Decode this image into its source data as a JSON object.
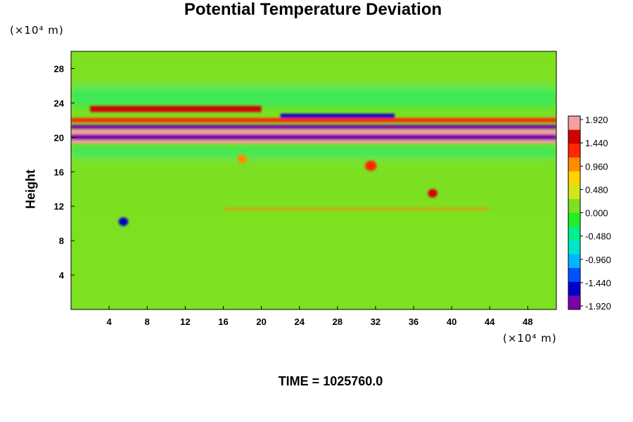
{
  "chart_data": {
    "type": "heatmap",
    "title": "Potential Temperature Deviation",
    "ylabel": "Height",
    "xlabel": "",
    "y_unit": "(×10⁴ m)",
    "x_unit": "(×10⁴ m)",
    "xlim": [
      0,
      51
    ],
    "ylim": [
      0,
      30
    ],
    "x_ticks": [
      4,
      8,
      12,
      16,
      20,
      24,
      28,
      32,
      36,
      40,
      44,
      48
    ],
    "y_ticks": [
      4,
      8,
      12,
      16,
      20,
      24,
      28
    ],
    "color_range": [
      -1.92,
      1.92
    ],
    "colorbar_labels": [
      "1.920",
      "1.440",
      "0.960",
      "0.480",
      "0.000",
      "-0.480",
      "-0.960",
      "-1.440",
      "-1.920"
    ],
    "colormap": [
      "#7a00a8",
      "#0000cc",
      "#0050ff",
      "#00b4ff",
      "#00e6c8",
      "#00f08c",
      "#22ee22",
      "#7de020",
      "#d2e61e",
      "#ffd200",
      "#ff8c00",
      "#ff2800",
      "#d20000",
      "#f4a0a0"
    ],
    "features": [
      {
        "kind": "band",
        "x_range": [
          0,
          51
        ],
        "y": 21.2,
        "thickness": 0.5,
        "value": -1.92
      },
      {
        "kind": "band",
        "x_range": [
          0,
          51
        ],
        "y": 20.6,
        "thickness": 0.6,
        "value": 1.92
      },
      {
        "kind": "band",
        "x_range": [
          0,
          51
        ],
        "y": 20.0,
        "thickness": 0.7,
        "value": -1.92
      },
      {
        "kind": "band",
        "x_range": [
          0,
          51
        ],
        "y": 19.5,
        "thickness": 0.4,
        "value": 1.92
      },
      {
        "kind": "band",
        "x_range": [
          2,
          20
        ],
        "y": 23.3,
        "thickness": 0.7,
        "value": 1.6
      },
      {
        "kind": "band",
        "x_range": [
          22,
          34
        ],
        "y": 22.5,
        "thickness": 0.5,
        "value": -1.6
      },
      {
        "kind": "band",
        "x_range": [
          0,
          51
        ],
        "y": 22.0,
        "thickness": 0.5,
        "value": 1.2
      },
      {
        "kind": "spot",
        "x": 31.5,
        "y": 16.7,
        "r": 0.6,
        "value": 1.3
      },
      {
        "kind": "spot",
        "x": 38.0,
        "y": 13.5,
        "r": 0.5,
        "value": 1.6
      },
      {
        "kind": "spot",
        "x": 18.0,
        "y": 17.5,
        "r": 0.5,
        "value": 1.0
      },
      {
        "kind": "spot",
        "x": 5.5,
        "y": 10.2,
        "r": 0.5,
        "value": -1.4
      },
      {
        "kind": "band",
        "x_range": [
          16,
          44
        ],
        "y": 11.7,
        "thickness": 0.2,
        "value": 1.0
      }
    ]
  },
  "footer": {
    "time_label": "TIME = 1025760.0"
  }
}
